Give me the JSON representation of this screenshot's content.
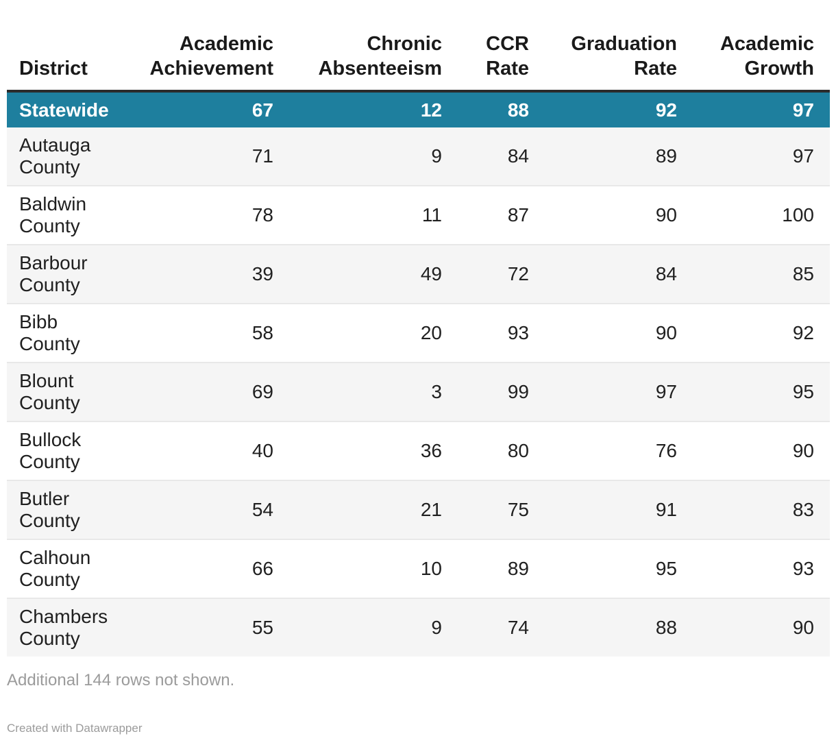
{
  "chart_data": {
    "type": "table",
    "columns": [
      "District",
      "Academic Achievement",
      "Chronic Absenteeism",
      "CCR Rate",
      "Graduation Rate",
      "Academic Growth"
    ],
    "rows": [
      [
        "Statewide",
        67,
        12,
        88,
        92,
        97
      ],
      [
        "Autauga County",
        71,
        9,
        84,
        89,
        97
      ],
      [
        "Baldwin County",
        78,
        11,
        87,
        90,
        100
      ],
      [
        "Barbour County",
        39,
        49,
        72,
        84,
        85
      ],
      [
        "Bibb County",
        58,
        20,
        93,
        90,
        92
      ],
      [
        "Blount County",
        69,
        3,
        99,
        97,
        95
      ],
      [
        "Bullock County",
        40,
        36,
        80,
        76,
        90
      ],
      [
        "Butler County",
        54,
        21,
        75,
        91,
        83
      ],
      [
        "Calhoun County",
        66,
        10,
        89,
        95,
        93
      ],
      [
        "Chambers County",
        55,
        9,
        74,
        88,
        90
      ]
    ],
    "highlight_row": "Statewide",
    "note": "Additional 144 rows not shown.",
    "credit": "Created with Datawrapper",
    "layout_hints": {
      "numeric_columns_align": "right",
      "district_column_align": "left",
      "striped_rows": true
    }
  },
  "colors": {
    "highlight_row_bg": "#1e7f9e",
    "highlight_row_text": "#ffffff",
    "header_rule": "#2b2b2b",
    "stripe_bg": "#f5f5f5",
    "row_separator": "#e8e8e8",
    "text": "#202020",
    "muted_text": "#9b9b9b"
  }
}
